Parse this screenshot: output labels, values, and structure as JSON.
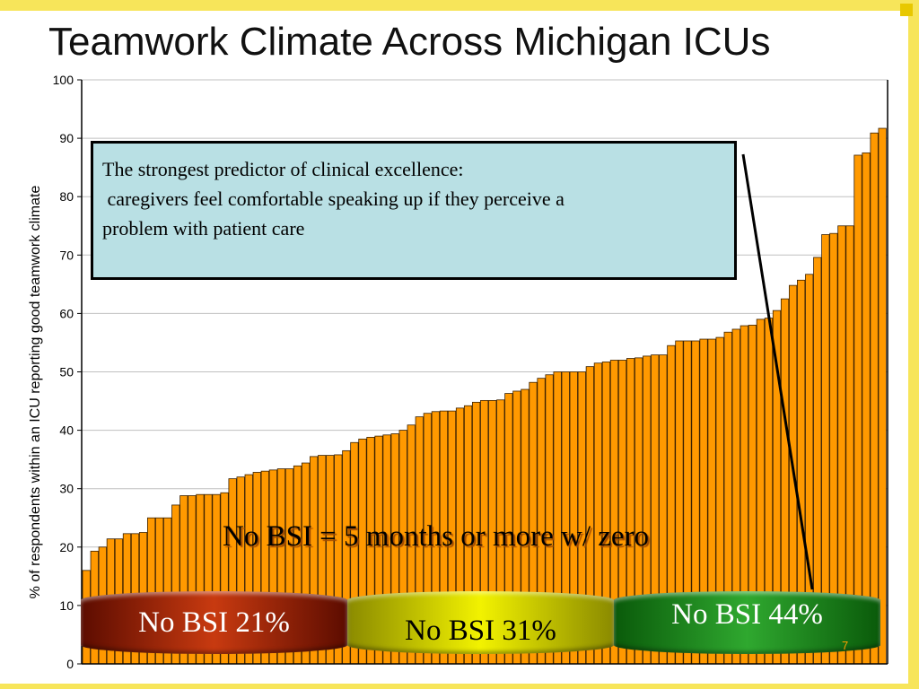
{
  "colors": {
    "bar": "#ff9900",
    "bar_stroke": "#3a2000",
    "gridline": "#c0c0c0",
    "callout_bg": "#b9e0e4",
    "frame": "#f7e55a"
  },
  "slide": {
    "title": "Teamwork Climate Across Michigan ICUs",
    "slide_number": "7"
  },
  "callout": {
    "line1": "The strongest predictor of clinical excellence:",
    "line2": " caregivers feel comfortable speaking up if they perceive a",
    "line3": "problem with patient care"
  },
  "annotation": {
    "text": "No BSI = 5 months or more w/ zero"
  },
  "groups": [
    {
      "label": "No BSI 21%",
      "color": "red"
    },
    {
      "label": "No BSI 31%",
      "color": "yellow"
    },
    {
      "label": "No BSI 44%",
      "color": "green"
    }
  ],
  "chart_data": {
    "type": "bar",
    "title": "Teamwork Climate Across Michigan ICUs",
    "xlabel": "",
    "ylabel": "% of respondents within an ICU reporting good teamwork climate",
    "ylim": [
      0,
      100
    ],
    "yticks": [
      "0",
      "10",
      "20",
      "30",
      "40",
      "50",
      "60",
      "70",
      "80",
      "90",
      "100"
    ],
    "grid": true,
    "legend": "none",
    "series": [
      {
        "name": "ICUs",
        "values": [
          16,
          19.3,
          20,
          21.4,
          21.4,
          22.3,
          22.3,
          22.5,
          25,
          25,
          25,
          27.2,
          28.8,
          28.8,
          29,
          29,
          29,
          29.3,
          31.7,
          32,
          32.4,
          32.8,
          33,
          33.2,
          33.4,
          33.4,
          33.9,
          34.4,
          35.5,
          35.7,
          35.7,
          35.8,
          36.5,
          37.9,
          38.5,
          38.8,
          39,
          39.2,
          39.4,
          40,
          40.9,
          42.3,
          42.9,
          43.2,
          43.3,
          43.3,
          43.8,
          44.2,
          44.8,
          45.1,
          45.1,
          45.2,
          46.3,
          46.7,
          47,
          48.2,
          48.9,
          49.5,
          50,
          50,
          50,
          50,
          50.9,
          51.5,
          51.7,
          52,
          52,
          52.3,
          52.4,
          52.7,
          52.9,
          52.9,
          54.5,
          55.3,
          55.3,
          55.3,
          55.6,
          55.6,
          55.9,
          56.8,
          57.3,
          57.9,
          58,
          59,
          59.2,
          60.5,
          62.5,
          64.8,
          65.7,
          66.7,
          69.6,
          73.5,
          73.7,
          75,
          75,
          87.1,
          87.5,
          90.9,
          91.7
        ]
      }
    ]
  }
}
